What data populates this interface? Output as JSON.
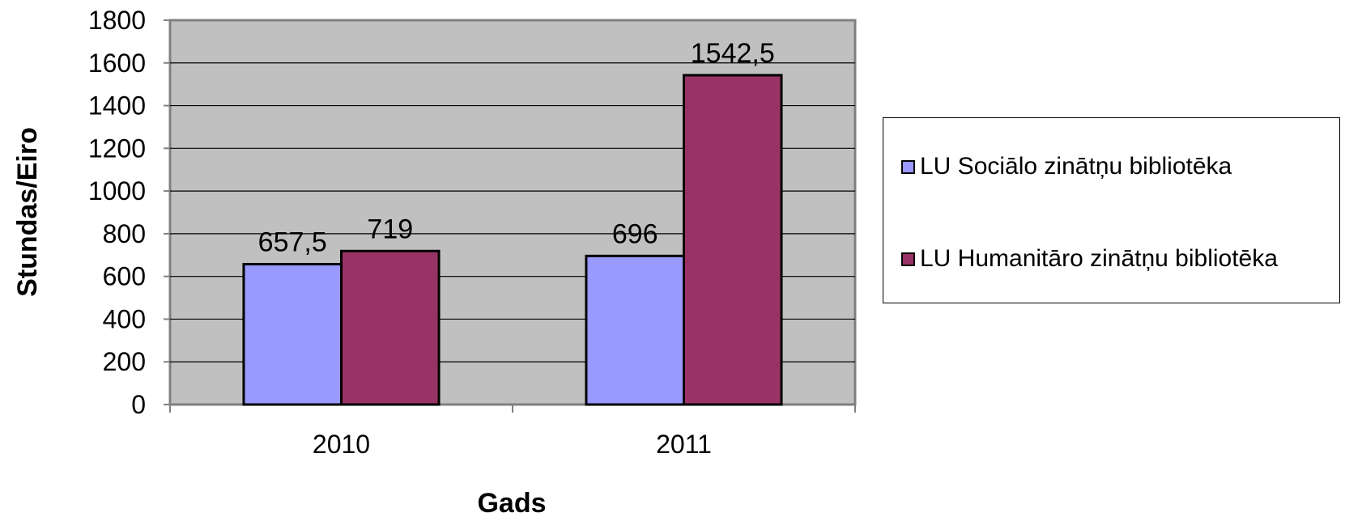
{
  "chart_data": {
    "type": "bar",
    "categories": [
      "2010",
      "2011"
    ],
    "series": [
      {
        "name": "LU Sociālo zinātņu bibliotēka",
        "values": [
          657.5,
          696
        ],
        "labels": [
          "657,5",
          "696"
        ],
        "color": "#9999FF"
      },
      {
        "name": "LU Humanitāro zinātņu bibliotēka",
        "values": [
          719,
          1542.5
        ],
        "labels": [
          "719",
          "1542,5"
        ],
        "color": "#993366"
      }
    ],
    "title": "",
    "xlabel": "Gads",
    "ylabel": "Stundas/Eiro",
    "ylim": [
      0,
      1800
    ],
    "yticks": [
      0,
      200,
      400,
      600,
      800,
      1000,
      1200,
      1400,
      1600,
      1800
    ],
    "grid": true,
    "plot_background": "#C0C0C0",
    "legend_position": "right"
  }
}
